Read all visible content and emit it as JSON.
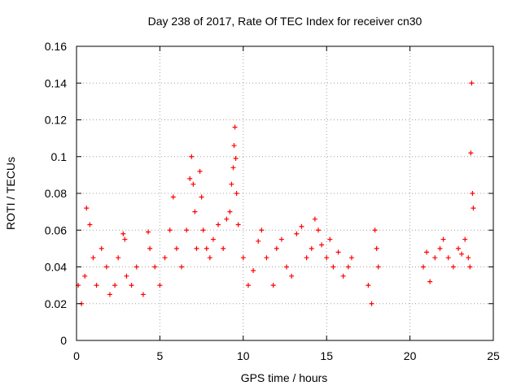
{
  "chart_data": {
    "type": "scatter",
    "title": "Day 238 of 2017, Rate Of TEC Index for receiver cn30",
    "xlabel": "GPS time / hours",
    "ylabel": "ROTI / TECUs",
    "xlim": [
      0,
      25
    ],
    "ylim": [
      0,
      0.16
    ],
    "x_ticks": [
      "0",
      "5",
      "10",
      "15",
      "20",
      "25"
    ],
    "y_ticks": [
      "0",
      "0.02",
      "0.04",
      "0.06",
      "0.08",
      "0.1",
      "0.12",
      "0.14",
      "0.16"
    ],
    "grid": true,
    "marker": "+",
    "color": "#ff0000",
    "series": [
      {
        "x": [
          0.1,
          0.3,
          0.5,
          0.6,
          0.8,
          1.0,
          1.2,
          1.5,
          1.8,
          2.0,
          2.3,
          2.5,
          2.8,
          2.9,
          3.0,
          3.3,
          3.6,
          4.0,
          4.3,
          4.4,
          4.7,
          5.0,
          5.3,
          5.6,
          5.8,
          6.0,
          6.3,
          6.6,
          6.8,
          6.9,
          7.0,
          7.1,
          7.2,
          7.4,
          7.5,
          7.6,
          7.8,
          8.0,
          8.2,
          8.5,
          8.8,
          9.0,
          9.2,
          9.3,
          9.4,
          9.45,
          9.5,
          9.55,
          9.6,
          9.7,
          10.0,
          10.3,
          10.6,
          10.9,
          11.1,
          11.4,
          11.8,
          12.0,
          12.3,
          12.6,
          12.9,
          13.2,
          13.5,
          13.8,
          14.1,
          14.3,
          14.5,
          14.7,
          15.0,
          15.2,
          15.4,
          15.7,
          16.0,
          16.3,
          16.5,
          17.5,
          17.7,
          17.9,
          18.0,
          18.1,
          20.8,
          21.0,
          21.2,
          21.5,
          21.8,
          22.0,
          22.3,
          22.6,
          22.9,
          23.1,
          23.3,
          23.5,
          23.6,
          23.65,
          23.7,
          23.75,
          23.8
        ],
        "y": [
          0.03,
          0.02,
          0.035,
          0.072,
          0.063,
          0.045,
          0.03,
          0.05,
          0.04,
          0.025,
          0.03,
          0.045,
          0.058,
          0.055,
          0.035,
          0.03,
          0.04,
          0.025,
          0.059,
          0.05,
          0.04,
          0.03,
          0.045,
          0.06,
          0.078,
          0.05,
          0.04,
          0.06,
          0.088,
          0.1,
          0.085,
          0.07,
          0.05,
          0.092,
          0.078,
          0.06,
          0.05,
          0.045,
          0.055,
          0.063,
          0.05,
          0.066,
          0.07,
          0.085,
          0.094,
          0.106,
          0.116,
          0.099,
          0.08,
          0.063,
          0.045,
          0.03,
          0.038,
          0.054,
          0.06,
          0.045,
          0.03,
          0.05,
          0.055,
          0.04,
          0.035,
          0.058,
          0.062,
          0.045,
          0.05,
          0.066,
          0.06,
          0.052,
          0.045,
          0.055,
          0.04,
          0.048,
          0.035,
          0.04,
          0.045,
          0.03,
          0.02,
          0.06,
          0.05,
          0.04,
          0.04,
          0.048,
          0.032,
          0.045,
          0.05,
          0.055,
          0.045,
          0.04,
          0.05,
          0.047,
          0.055,
          0.045,
          0.04,
          0.102,
          0.14,
          0.08,
          0.072
        ]
      }
    ]
  }
}
